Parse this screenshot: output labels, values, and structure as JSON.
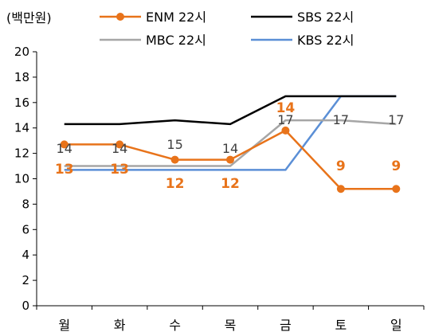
{
  "chart_data": {
    "type": "line",
    "unit_label": "(백만원)",
    "categories": [
      "월",
      "화",
      "수",
      "목",
      "금",
      "토",
      "일"
    ],
    "ylim": [
      0,
      20
    ],
    "y_ticks": [
      0,
      2,
      4,
      6,
      8,
      10,
      12,
      14,
      16,
      18,
      20
    ],
    "grid": false,
    "legend_position": "top",
    "series": [
      {
        "name": "ENM 22시",
        "color": "#E8731A",
        "marker": "circle",
        "values": [
          12.7,
          12.7,
          11.5,
          11.5,
          13.8,
          9.2,
          9.2
        ],
        "labels": [
          "13",
          "13",
          "12",
          "12",
          "14",
          "9",
          "9"
        ]
      },
      {
        "name": "SBS 22시",
        "color": "#000000",
        "marker": "none",
        "values": [
          14.3,
          14.3,
          14.6,
          14.3,
          16.5,
          16.5,
          16.5
        ],
        "labels": [
          "14",
          "14",
          "15",
          "14",
          "17",
          "17",
          "17"
        ]
      },
      {
        "name": "MBC 22시",
        "color": "#A6A6A6",
        "marker": "none",
        "values": [
          11.0,
          11.0,
          11.0,
          11.0,
          14.6,
          14.6,
          14.3
        ],
        "labels": []
      },
      {
        "name": "KBS 22시",
        "color": "#5B8FD6",
        "marker": "none",
        "values": [
          10.7,
          10.7,
          10.7,
          10.7,
          10.7,
          16.5,
          16.5
        ],
        "labels": []
      }
    ]
  }
}
